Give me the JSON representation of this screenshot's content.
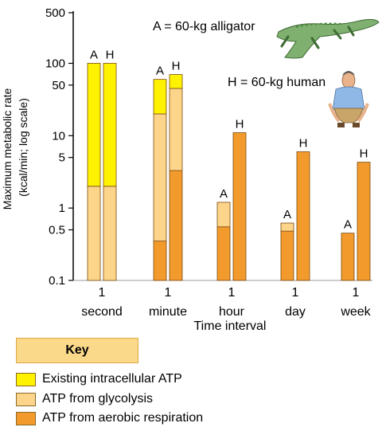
{
  "chart_data": {
    "type": "bar",
    "stacked": true,
    "log_scale": true,
    "ylabel_lines": [
      "Maximum metabolic rate",
      "(kcal/min; log scale)"
    ],
    "xlabel": "Time interval",
    "ylim": [
      0.1,
      500
    ],
    "yticks": [
      {
        "value": 500,
        "label": "500"
      },
      {
        "value": 100,
        "label": "100"
      },
      {
        "value": 50,
        "label": "50"
      },
      {
        "value": 10,
        "label": "10"
      },
      {
        "value": 5,
        "label": "5"
      },
      {
        "value": 1,
        "label": "1"
      },
      {
        "value": 0.5,
        "label": "0.5"
      },
      {
        "value": 0.1,
        "label": "0.1"
      }
    ],
    "categories": [
      {
        "line1": "1",
        "line2": "second"
      },
      {
        "line1": "1",
        "line2": "minute"
      },
      {
        "line1": "1",
        "line2": "hour"
      },
      {
        "line1": "1",
        "line2": "day"
      },
      {
        "line1": "1",
        "line2": "week"
      }
    ],
    "series_colors": {
      "aerobic": "#f39a2c",
      "glycolysis": "#fcd58a",
      "atp": "#fff200"
    },
    "bars": [
      {
        "category": 0,
        "label": "A",
        "aerobic": null,
        "glycolysis": 2,
        "atp": 100
      },
      {
        "category": 0,
        "label": "H",
        "aerobic": null,
        "glycolysis": 2,
        "atp": 100
      },
      {
        "category": 1,
        "label": "A",
        "aerobic": 0.35,
        "glycolysis": 20,
        "atp": 60
      },
      {
        "category": 1,
        "label": "H",
        "aerobic": 3.3,
        "glycolysis": 45,
        "atp": 70
      },
      {
        "category": 2,
        "label": "A",
        "aerobic": 0.55,
        "glycolysis": 1.2,
        "atp": null
      },
      {
        "category": 2,
        "label": "H",
        "aerobic": 11,
        "glycolysis": null,
        "atp": null
      },
      {
        "category": 3,
        "label": "A",
        "aerobic": 0.48,
        "glycolysis": 0.62,
        "atp": null
      },
      {
        "category": 3,
        "label": "H",
        "aerobic": 6,
        "glycolysis": null,
        "atp": null
      },
      {
        "category": 4,
        "label": "A",
        "aerobic": 0.45,
        "glycolysis": null,
        "atp": null
      },
      {
        "category": 4,
        "label": "H",
        "aerobic": 4.3,
        "glycolysis": null,
        "atp": null
      }
    ],
    "annotations": {
      "alligator": "A = 60-kg alligator",
      "human": "H = 60-kg human"
    }
  },
  "key": {
    "title": "Key",
    "items": [
      {
        "label": "Existing intracellular ATP",
        "color": "#fff200"
      },
      {
        "label": "ATP from glycolysis",
        "color": "#fcd58a"
      },
      {
        "label": "ATP from aerobic respiration",
        "color": "#f39a2c"
      }
    ]
  }
}
